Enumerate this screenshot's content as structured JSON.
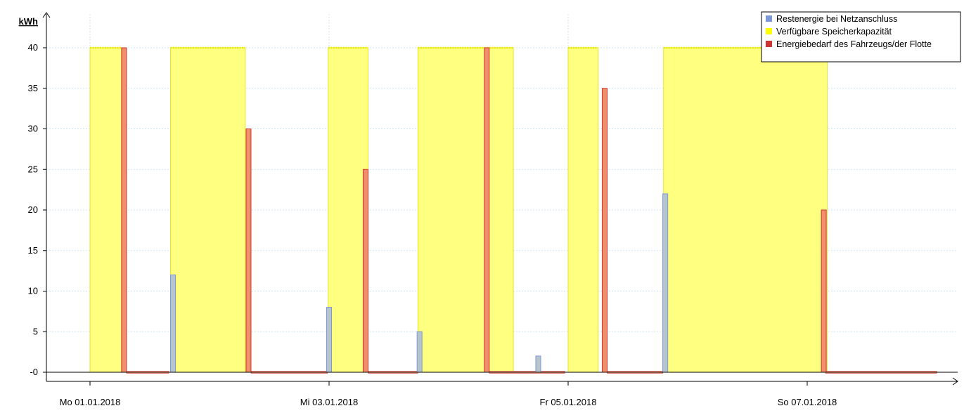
{
  "chart_data": {
    "type": "bar",
    "ylabel": "kWh",
    "ylim": [
      0,
      40
    ],
    "yticks": [
      {
        "value": 40,
        "label": "40"
      },
      {
        "value": 35,
        "label": "35"
      },
      {
        "value": 30,
        "label": "30"
      },
      {
        "value": 25,
        "label": "25"
      },
      {
        "value": 20,
        "label": "20"
      },
      {
        "value": 15,
        "label": "15"
      },
      {
        "value": 10,
        "label": "10"
      },
      {
        "value": 5,
        "label": "5"
      },
      {
        "value": 0,
        "label": "-0"
      }
    ],
    "xrange": [
      "2018-01-01T00:00",
      "2018-01-08T04:00"
    ],
    "xticks": [
      {
        "time": "2018-01-01T00:00",
        "label": "Mo 01.01.2018"
      },
      {
        "time": "2018-01-03T00:00",
        "label": "Mi 03.01.2018"
      },
      {
        "time": "2018-01-05T00:00",
        "label": "Fr 05.01.2018"
      },
      {
        "time": "2018-01-07T00:00",
        "label": "So 07.01.2018"
      }
    ],
    "grid": true,
    "legend_position": "top-right",
    "legend": [
      {
        "label": "Restenergie bei Netzanschluss",
        "color": "#7b98d8"
      },
      {
        "label": "Verfügbare Speicherkapazität",
        "color": "#ffff00"
      },
      {
        "label": "Energiebedarf des Fahrzeugs/der Flotte",
        "color": "#cc3333"
      }
    ],
    "series": [
      {
        "name": "Verfügbare Speicherkapazität",
        "kind": "area",
        "color": "#ffff80",
        "edge_color": "#e0e000",
        "intervals": [
          {
            "start": "2018-01-01T00:00",
            "end": "2018-01-01T06:20",
            "value": 40
          },
          {
            "start": "2018-01-01T16:10",
            "end": "2018-01-02T07:10",
            "value": 40
          },
          {
            "start": "2018-01-02T23:50",
            "end": "2018-01-03T07:50",
            "value": 40
          },
          {
            "start": "2018-01-03T17:50",
            "end": "2018-01-04T13:00",
            "value": 40
          },
          {
            "start": "2018-01-05T00:00",
            "end": "2018-01-05T06:00",
            "value": 40
          },
          {
            "start": "2018-01-05T19:10",
            "end": "2018-01-07T04:00",
            "value": 40
          }
        ]
      },
      {
        "name": "Restenergie bei Netzanschluss",
        "kind": "bar",
        "color": "#b8c4cc",
        "edge_color": "#7b98d8",
        "points": [
          {
            "time": "2018-01-01T16:40",
            "value": 12
          },
          {
            "time": "2018-01-03T00:00",
            "value": 8
          },
          {
            "time": "2018-01-03T18:10",
            "value": 5
          },
          {
            "time": "2018-01-04T18:00",
            "value": 2
          },
          {
            "time": "2018-01-05T19:30",
            "value": 22
          }
        ]
      },
      {
        "name": "Energiebedarf des Fahrzeugs/der Flotte",
        "kind": "bar",
        "color": "#f0906a",
        "edge_color": "#cc3333",
        "points": [
          {
            "time": "2018-01-01T06:50",
            "value": 40
          },
          {
            "time": "2018-01-02T07:50",
            "value": 30
          },
          {
            "time": "2018-01-03T07:20",
            "value": 25
          },
          {
            "time": "2018-01-04T07:40",
            "value": 40
          },
          {
            "time": "2018-01-05T07:20",
            "value": 35
          },
          {
            "time": "2018-01-07T03:20",
            "value": 20
          }
        ]
      },
      {
        "name": "",
        "kind": "baseline-segments",
        "color": "#ffb090",
        "edge_color": "#cc3333",
        "intervals": [
          {
            "start": "2018-01-01T07:20",
            "end": "2018-01-01T15:50"
          },
          {
            "start": "2018-01-02T08:20",
            "end": "2018-01-02T23:40"
          },
          {
            "start": "2018-01-03T07:50",
            "end": "2018-01-03T17:50"
          },
          {
            "start": "2018-01-04T08:10",
            "end": "2018-01-04T23:20"
          },
          {
            "start": "2018-01-05T07:50",
            "end": "2018-01-05T19:00"
          },
          {
            "start": "2018-01-07T03:40",
            "end": "2018-01-08T02:00"
          }
        ]
      }
    ]
  }
}
